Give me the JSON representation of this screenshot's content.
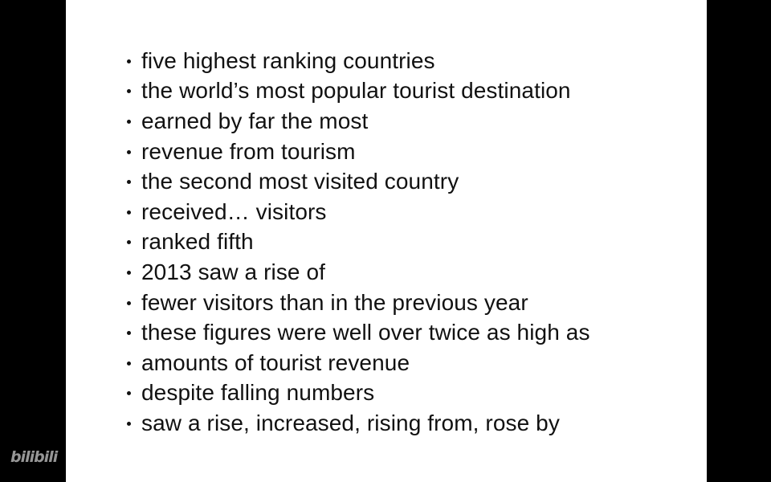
{
  "slide": {
    "bullets": [
      "five highest ranking countries",
      "the world’s most popular tourist destination",
      "earned by far the most",
      "revenue from tourism",
      "the second most visited country",
      "received… visitors",
      "ranked fifth",
      "2013 saw a rise of",
      "fewer visitors than in the previous year",
      "these figures were well over twice as high as",
      "amounts of tourist revenue",
      "despite falling numbers",
      "saw a rise, increased, rising from, rose by"
    ]
  },
  "watermark": {
    "text": "bilibili"
  },
  "colors": {
    "background": "#000000",
    "slide": "#ffffff",
    "text": "#111111"
  }
}
